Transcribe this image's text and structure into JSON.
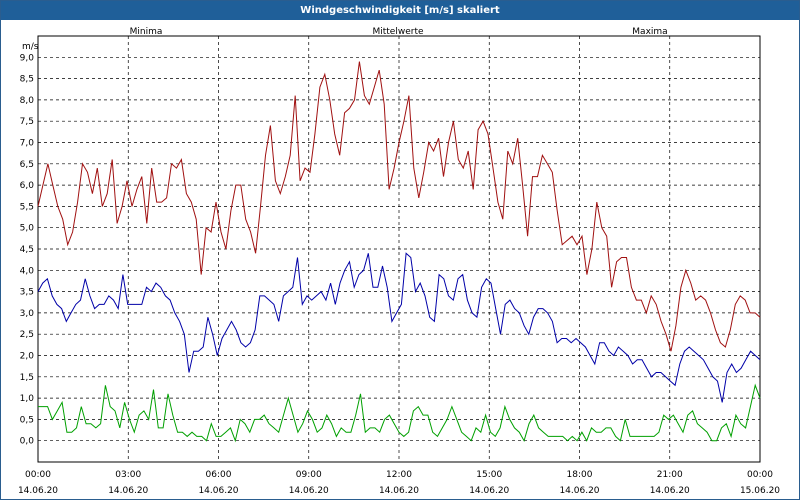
{
  "window": {
    "title": "Windgeschwindigkeit [m/s] skaliert"
  },
  "chart_data": {
    "type": "line",
    "unit_label": "m/s",
    "xlabel": "",
    "ylabel": "",
    "ylim": [
      -0.5,
      9.5
    ],
    "xlim": [
      0,
      24
    ],
    "grid": true,
    "legend": "top",
    "y_ticks": [
      "0,0",
      "0,5",
      "1,0",
      "1,5",
      "2,0",
      "2,5",
      "3,0",
      "3,5",
      "4,0",
      "4,5",
      "5,0",
      "5,5",
      "6,0",
      "6,5",
      "7,0",
      "7,5",
      "8,0",
      "8,5",
      "9,0"
    ],
    "x_ticks": [
      {
        "time": "00:00",
        "date": "14.06.20"
      },
      {
        "time": "03:00",
        "date": "14.06.20"
      },
      {
        "time": "06:00",
        "date": "14.06.20"
      },
      {
        "time": "09:00",
        "date": "14.06.20"
      },
      {
        "time": "12:00",
        "date": "14.06.20"
      },
      {
        "time": "15:00",
        "date": "14.06.20"
      },
      {
        "time": "18:00",
        "date": "14.06.20"
      },
      {
        "time": "21:00",
        "date": "14.06.20"
      },
      {
        "time": "00:00",
        "date": "15.06.20"
      }
    ],
    "series": [
      {
        "name": "Maxima",
        "color": "#a01010",
        "values": [
          5.5,
          6.0,
          6.5,
          6.0,
          5.5,
          5.2,
          4.6,
          4.9,
          5.6,
          6.5,
          6.3,
          5.8,
          6.4,
          5.5,
          5.8,
          6.6,
          5.1,
          5.5,
          6.1,
          5.5,
          5.9,
          6.2,
          5.1,
          6.4,
          5.6,
          5.6,
          5.7,
          6.5,
          6.4,
          6.6,
          5.8,
          5.6,
          5.2,
          3.9,
          5.0,
          4.9,
          5.6,
          4.9,
          4.5,
          5.4,
          6.0,
          6.0,
          5.2,
          4.9,
          4.4,
          5.5,
          6.7,
          7.4,
          6.1,
          5.8,
          6.2,
          6.7,
          8.1,
          6.1,
          6.4,
          6.3,
          7.2,
          8.3,
          8.6,
          8.0,
          7.2,
          6.7,
          7.7,
          7.8,
          8.0,
          8.9,
          8.1,
          7.9,
          8.3,
          8.7,
          7.9,
          5.9,
          6.4,
          7.0,
          7.5,
          8.1,
          6.4,
          5.7,
          6.3,
          7.0,
          6.8,
          7.1,
          6.2,
          7.0,
          7.5,
          6.6,
          6.4,
          6.8,
          5.9,
          7.3,
          7.5,
          7.2,
          6.4,
          5.6,
          5.2,
          6.8,
          6.5,
          7.1,
          6.0,
          4.8,
          6.2,
          6.2,
          6.7,
          6.5,
          6.3,
          5.4,
          4.6,
          4.7,
          4.8,
          4.6,
          4.8,
          3.9,
          4.5,
          5.6,
          5.0,
          4.8,
          3.6,
          4.2,
          4.3,
          4.3,
          3.6,
          3.3,
          3.3,
          3.0,
          3.4,
          3.2,
          2.8,
          2.5,
          2.1,
          2.7,
          3.6,
          4.0,
          3.7,
          3.3,
          3.4,
          3.3,
          3.0,
          2.6,
          2.3,
          2.2,
          2.6,
          3.2,
          3.4,
          3.3,
          3.0,
          3.0,
          2.9
        ]
      },
      {
        "name": "Mittelwerte",
        "color": "#0000a8",
        "values": [
          3.5,
          3.7,
          3.8,
          3.4,
          3.2,
          3.1,
          2.8,
          3.0,
          3.2,
          3.3,
          3.8,
          3.4,
          3.1,
          3.2,
          3.2,
          3.4,
          3.3,
          3.1,
          3.9,
          3.2,
          3.2,
          3.2,
          3.2,
          3.6,
          3.5,
          3.7,
          3.6,
          3.4,
          3.3,
          3.0,
          2.8,
          2.5,
          1.6,
          2.1,
          2.1,
          2.2,
          2.9,
          2.5,
          2.0,
          2.4,
          2.6,
          2.8,
          2.6,
          2.3,
          2.2,
          2.3,
          2.6,
          3.4,
          3.4,
          3.3,
          3.2,
          2.8,
          3.4,
          3.5,
          3.6,
          4.3,
          3.2,
          3.4,
          3.3,
          3.4,
          3.5,
          3.3,
          3.7,
          3.2,
          3.7,
          4.0,
          4.2,
          3.6,
          3.9,
          4.0,
          4.4,
          3.6,
          3.6,
          4.1,
          3.6,
          2.8,
          3.0,
          3.2,
          4.4,
          4.3,
          3.5,
          3.7,
          3.4,
          2.9,
          2.8,
          3.9,
          3.8,
          3.4,
          3.3,
          3.8,
          3.9,
          3.3,
          3.0,
          2.9,
          3.6,
          3.8,
          3.7,
          3.1,
          2.5,
          3.2,
          3.3,
          3.1,
          3.0,
          2.7,
          2.5,
          2.9,
          3.1,
          3.1,
          3.0,
          2.8,
          2.3,
          2.4,
          2.4,
          2.3,
          2.4,
          2.3,
          2.2,
          2.0,
          1.8,
          2.3,
          2.3,
          2.1,
          2.0,
          2.2,
          2.1,
          2.0,
          1.8,
          1.9,
          1.9,
          1.7,
          1.5,
          1.6,
          1.6,
          1.5,
          1.4,
          1.3,
          1.8,
          2.1,
          2.2,
          2.1,
          2.0,
          1.9,
          1.7,
          1.5,
          1.4,
          0.9,
          1.6,
          1.8,
          1.6,
          1.7,
          1.9,
          2.1,
          2.0,
          1.9
        ]
      },
      {
        "name": "Minima",
        "color": "#00a000",
        "values": [
          0.8,
          0.8,
          0.8,
          0.5,
          0.7,
          0.9,
          0.2,
          0.2,
          0.3,
          0.8,
          0.4,
          0.4,
          0.3,
          0.4,
          1.3,
          0.8,
          0.7,
          0.3,
          0.9,
          0.5,
          0.2,
          0.6,
          0.7,
          0.5,
          1.2,
          0.3,
          0.3,
          1.1,
          0.6,
          0.2,
          0.2,
          0.1,
          0.2,
          0.1,
          0.1,
          0.0,
          0.4,
          0.1,
          0.1,
          0.2,
          0.3,
          0.0,
          0.5,
          0.4,
          0.2,
          0.5,
          0.5,
          0.6,
          0.4,
          0.3,
          0.2,
          0.6,
          1.0,
          0.6,
          0.2,
          0.4,
          0.7,
          0.5,
          0.2,
          0.3,
          0.6,
          0.4,
          0.1,
          0.3,
          0.2,
          0.2,
          0.6,
          1.1,
          0.2,
          0.3,
          0.3,
          0.2,
          0.5,
          0.6,
          0.4,
          0.2,
          0.1,
          0.2,
          0.7,
          0.8,
          0.6,
          0.6,
          0.2,
          0.1,
          0.3,
          0.5,
          0.8,
          0.5,
          0.2,
          0.1,
          0.0,
          0.3,
          0.2,
          0.6,
          0.2,
          0.1,
          0.3,
          0.8,
          0.5,
          0.3,
          0.2,
          0.0,
          0.4,
          0.6,
          0.3,
          0.2,
          0.1,
          0.1,
          0.1,
          0.1,
          0.0,
          0.1,
          0.0,
          0.2,
          0.0,
          0.3,
          0.2,
          0.2,
          0.3,
          0.3,
          0.1,
          0.0,
          0.5,
          0.1,
          0.1,
          0.1,
          0.1,
          0.1,
          0.1,
          0.2,
          0.6,
          0.5,
          0.6,
          0.4,
          0.2,
          0.6,
          0.7,
          0.4,
          0.3,
          0.2,
          0.0,
          0.0,
          0.3,
          0.4,
          0.1,
          0.6,
          0.4,
          0.3,
          0.8,
          1.3,
          1.0
        ]
      }
    ]
  }
}
